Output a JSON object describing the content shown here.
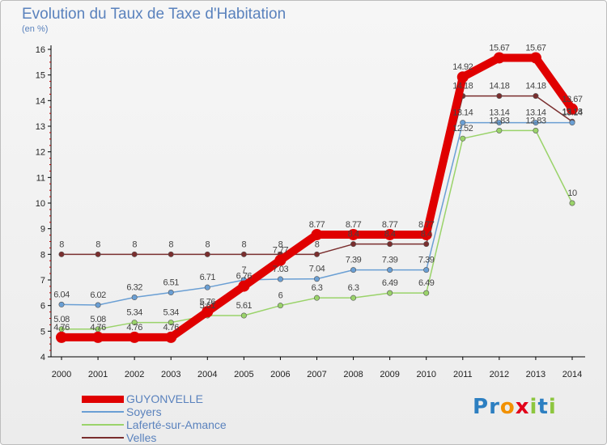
{
  "title": "Evolution du Taux de Taxe d'Habitation",
  "unit": "(en %)",
  "logo": {
    "letters": [
      "P",
      "r",
      "o",
      "x",
      "i",
      "t",
      "i"
    ],
    "colors": [
      "#2d7fc1",
      "#2d7fc1",
      "#f29100",
      "#e2001a",
      "#8dc63f",
      "#2d7fc1",
      "#8dc63f"
    ]
  },
  "chart_data": {
    "type": "line",
    "title": "Evolution du Taux de Taxe d'Habitation",
    "ylabel": "(en %)",
    "xlabel": "",
    "x": [
      "2000",
      "2001",
      "2002",
      "2003",
      "2004",
      "2005",
      "2006",
      "2007",
      "2008",
      "2009",
      "2010",
      "2011",
      "2012",
      "2013",
      "2014"
    ],
    "ylim": [
      4,
      16
    ],
    "yticks": [
      "4",
      "5",
      "6",
      "7",
      "8",
      "9",
      "10",
      "11",
      "12",
      "13",
      "14",
      "15",
      "16"
    ],
    "grid": false,
    "legend": "bottom-left",
    "series": [
      {
        "name": "GUYONVELLE",
        "color": "#e00000",
        "values": [
          4.76,
          4.76,
          4.76,
          4.76,
          5.76,
          6.76,
          7.77,
          8.77,
          8.77,
          8.77,
          8.77,
          14.92,
          15.67,
          15.67,
          13.67
        ],
        "labels": [
          "4.76",
          "4.76",
          "4.76",
          "4.76",
          "5.76",
          "6.76",
          "7.77",
          "8.77",
          "8.77",
          "8.77",
          "8.77",
          "14.92",
          "15.67",
          "15.67",
          "13.67"
        ]
      },
      {
        "name": "Soyers",
        "color": "#6a9fd4",
        "values": [
          6.04,
          6.02,
          6.32,
          6.51,
          6.71,
          7,
          7.03,
          7.04,
          7.39,
          7.39,
          7.39,
          13.14,
          13.14,
          13.14,
          13.14
        ],
        "labels": [
          "6.04",
          "6.02",
          "6.32",
          "6.51",
          "6.71",
          "7",
          "7.03",
          "7.04",
          "7.39",
          "7.39",
          "7.39",
          "13.14",
          "13.14",
          "13.14",
          "13.14"
        ]
      },
      {
        "name": "Laferté-sur-Amance",
        "color": "#9ad36a",
        "values": [
          5.08,
          5.08,
          5.34,
          5.34,
          5.61,
          5.61,
          6,
          6.3,
          6.3,
          6.49,
          6.49,
          12.52,
          12.83,
          12.83,
          10
        ],
        "labels": [
          "5.08",
          "5.08",
          "5.34",
          "5.34",
          "5.61",
          "5.61",
          "6",
          "6.3",
          "6.3",
          "6.49",
          "6.49",
          "12.52",
          "12.83",
          "12.83",
          "10"
        ]
      },
      {
        "name": "Velles",
        "color": "#7a2e2e",
        "values": [
          8,
          8,
          8,
          8,
          8,
          8,
          8,
          8,
          8.4,
          8.4,
          8.4,
          14.18,
          14.18,
          14.18,
          13.18
        ],
        "labels": [
          "8",
          "8",
          "8",
          "8",
          "8",
          "8",
          "8",
          "8",
          "8.4",
          "8.4",
          "8.4",
          "14.18",
          "14.18",
          "14.18",
          "13.18"
        ]
      }
    ]
  }
}
